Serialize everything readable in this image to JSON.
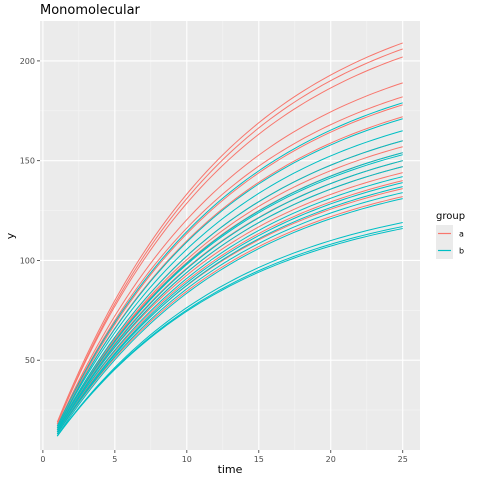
{
  "chart_data": {
    "type": "line",
    "title": "Monomolecular",
    "xlabel": "time",
    "ylabel": "y",
    "xlim": [
      -0.2,
      26.2
    ],
    "ylim": [
      5,
      220
    ],
    "x_ticks": [
      0,
      5,
      10,
      15,
      20,
      25
    ],
    "x_tick_labels": [
      "0",
      "5",
      "10",
      "15",
      "20",
      "25"
    ],
    "y_ticks": [
      50,
      100,
      150,
      200
    ],
    "y_tick_labels": [
      "50",
      "100",
      "150",
      "200"
    ],
    "grid": true,
    "legend": {
      "title": "group",
      "position": "right",
      "entries": [
        "a",
        "b"
      ]
    },
    "colors": {
      "a": "#F8766D",
      "b": "#00BFC4"
    },
    "x": [
      1,
      25
    ],
    "series": [
      {
        "group": "a",
        "start": 19,
        "end": 209
      },
      {
        "group": "a",
        "start": 18,
        "end": 206
      },
      {
        "group": "a",
        "start": 18,
        "end": 202
      },
      {
        "group": "a",
        "start": 17,
        "end": 189
      },
      {
        "group": "a",
        "start": 17,
        "end": 182
      },
      {
        "group": "a",
        "start": 16,
        "end": 178
      },
      {
        "group": "a",
        "start": 16,
        "end": 172
      },
      {
        "group": "a",
        "start": 15,
        "end": 160
      },
      {
        "group": "a",
        "start": 15,
        "end": 157
      },
      {
        "group": "a",
        "start": 16,
        "end": 154
      },
      {
        "group": "a",
        "start": 15,
        "end": 150
      },
      {
        "group": "a",
        "start": 14,
        "end": 147
      },
      {
        "group": "a",
        "start": 15,
        "end": 144
      },
      {
        "group": "a",
        "start": 14,
        "end": 140
      },
      {
        "group": "a",
        "start": 14,
        "end": 136
      },
      {
        "group": "a",
        "start": 13,
        "end": 132
      },
      {
        "group": "b",
        "start": 17,
        "end": 179
      },
      {
        "group": "b",
        "start": 16,
        "end": 171
      },
      {
        "group": "b",
        "start": 16,
        "end": 165
      },
      {
        "group": "b",
        "start": 15,
        "end": 160
      },
      {
        "group": "b",
        "start": 15,
        "end": 154
      },
      {
        "group": "b",
        "start": 15,
        "end": 153
      },
      {
        "group": "b",
        "start": 14,
        "end": 150
      },
      {
        "group": "b",
        "start": 14,
        "end": 147
      },
      {
        "group": "b",
        "start": 14,
        "end": 142
      },
      {
        "group": "b",
        "start": 13,
        "end": 139
      },
      {
        "group": "b",
        "start": 13,
        "end": 137
      },
      {
        "group": "b",
        "start": 13,
        "end": 134
      },
      {
        "group": "b",
        "start": 12,
        "end": 131
      },
      {
        "group": "b",
        "start": 12,
        "end": 119
      },
      {
        "group": "b",
        "start": 12,
        "end": 117
      },
      {
        "group": "b",
        "start": 12,
        "end": 116
      }
    ]
  }
}
